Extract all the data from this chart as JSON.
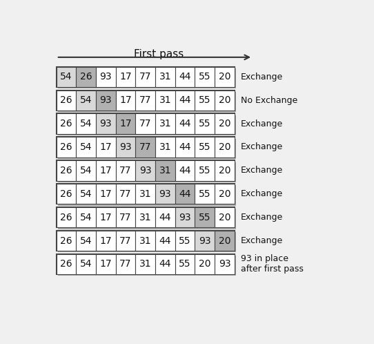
{
  "title": "First pass",
  "rows": [
    [
      54,
      26,
      93,
      17,
      77,
      31,
      44,
      55,
      20
    ],
    [
      26,
      54,
      93,
      17,
      77,
      31,
      44,
      55,
      20
    ],
    [
      26,
      54,
      93,
      17,
      77,
      31,
      44,
      55,
      20
    ],
    [
      26,
      54,
      17,
      93,
      77,
      31,
      44,
      55,
      20
    ],
    [
      26,
      54,
      17,
      77,
      93,
      31,
      44,
      55,
      20
    ],
    [
      26,
      54,
      17,
      77,
      31,
      93,
      44,
      55,
      20
    ],
    [
      26,
      54,
      17,
      77,
      31,
      44,
      93,
      55,
      20
    ],
    [
      26,
      54,
      17,
      77,
      31,
      44,
      55,
      93,
      20
    ],
    [
      26,
      54,
      17,
      77,
      31,
      44,
      55,
      20,
      93
    ]
  ],
  "highlighted": [
    [
      0,
      1
    ],
    [
      1,
      2
    ],
    [
      2,
      3
    ],
    [
      3,
      4
    ],
    [
      4,
      5
    ],
    [
      5,
      6
    ],
    [
      6,
      7
    ],
    [
      7,
      8
    ],
    []
  ],
  "labels": [
    "Exchange",
    "No Exchange",
    "Exchange",
    "Exchange",
    "Exchange",
    "Exchange",
    "Exchange",
    "Exchange",
    "93 in place\nafter first pass"
  ],
  "highlight_color_light": "#d8d8d8",
  "highlight_color_dark": "#b0b0b0",
  "cell_color": "#ffffff",
  "cell_edge_color": "#444444",
  "outer_box_color": "#444444",
  "text_color": "#111111",
  "label_color": "#111111",
  "background_color": "#f0f0f0",
  "title_color": "#111111",
  "arrow_color": "#333333",
  "font_size": 10,
  "label_font_size": 9,
  "title_font_size": 11
}
